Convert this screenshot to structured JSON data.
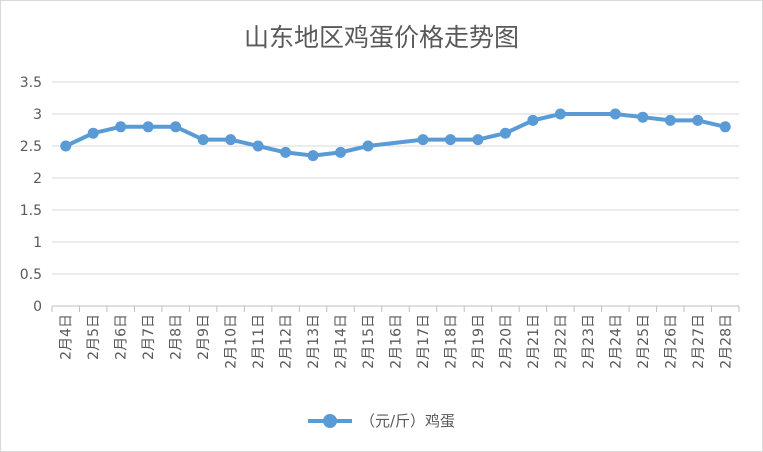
{
  "chart_data": {
    "type": "line",
    "title": "山东地区鸡蛋价格走势图",
    "xlabel": "",
    "ylabel": "",
    "ylim": [
      0,
      3.5
    ],
    "y_ticks": [
      "0",
      "0.5",
      "1",
      "1.5",
      "2",
      "2.5",
      "3",
      "3.5"
    ],
    "grid": "horizontal",
    "legend_position": "bottom",
    "categories": [
      "2月4日",
      "2月5日",
      "2月6日",
      "2月7日",
      "2月8日",
      "2月9日",
      "2月10日",
      "2月11日",
      "2月12日",
      "2月13日",
      "2月14日",
      "2月15日",
      "2月16日",
      "2月17日",
      "2月18日",
      "2月19日",
      "2月20日",
      "2月21日",
      "2月22日",
      "2月23日",
      "2月24日",
      "2月25日",
      "2月26日",
      "2月27日",
      "2月28日"
    ],
    "series": [
      {
        "name": "（元/斤）鸡蛋",
        "color": "#5b9bd5",
        "values": [
          2.5,
          2.7,
          2.8,
          2.8,
          2.8,
          2.6,
          2.6,
          2.5,
          2.4,
          2.35,
          2.4,
          2.5,
          null,
          2.6,
          2.6,
          2.6,
          2.7,
          2.9,
          3.0,
          null,
          3.0,
          2.95,
          2.9,
          2.9,
          2.8
        ]
      }
    ]
  }
}
